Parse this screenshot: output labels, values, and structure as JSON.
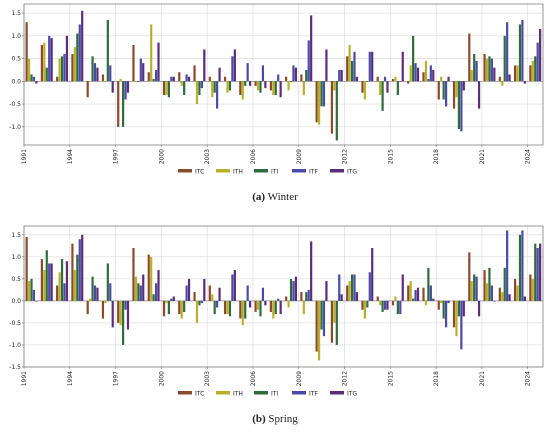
{
  "chart_data": [
    {
      "type": "bar",
      "title": "",
      "xlabel": "",
      "ylabel": "",
      "caption_label": "(a)",
      "caption_text": "Winter",
      "x": [
        1991,
        1992,
        1993,
        1994,
        1995,
        1996,
        1997,
        1998,
        1999,
        2000,
        2001,
        2002,
        2003,
        2004,
        2005,
        2006,
        2007,
        2008,
        2009,
        2010,
        2011,
        2012,
        2013,
        2014,
        2015,
        2016,
        2017,
        2018,
        2019,
        2020,
        2021,
        2022,
        2023,
        2024
      ],
      "x_tick_labels": [
        "1991",
        "1994",
        "1997",
        "2000",
        "2003",
        "2006",
        "2009",
        "2012",
        "2015",
        "2018",
        "2021",
        "2024"
      ],
      "y_ticks": [
        "-1.0",
        "-0.5",
        "0.0",
        "0.5",
        "1.0",
        "1.5"
      ],
      "ylim": [
        -1.4,
        1.7
      ],
      "legend_position": "bottom",
      "grid": true,
      "series": [
        {
          "name": "ITC",
          "color": "#8b4a2b",
          "values": [
            1.3,
            0.8,
            0.1,
            0.6,
            -0.35,
            0.15,
            -1.0,
            0.8,
            0.2,
            -0.3,
            0.2,
            0.35,
            0.1,
            0.1,
            -0.3,
            -0.1,
            -0.2,
            0.1,
            0.15,
            -0.9,
            -1.15,
            0.55,
            -0.25,
            0.1,
            0.05,
            -0.05,
            0.2,
            -0.4,
            -0.6,
            1.05,
            0.6,
            0.1,
            0.35,
            0.35
          ]
        },
        {
          "name": "ITH",
          "color": "#b8b02c",
          "values": [
            0.5,
            0.85,
            0.5,
            0.75,
            0.0,
            0.0,
            0.05,
            0.0,
            1.25,
            -0.3,
            -0.1,
            -0.5,
            -0.35,
            -0.25,
            -0.4,
            -0.2,
            -0.3,
            -0.2,
            -0.3,
            -0.95,
            -0.2,
            0.8,
            -0.4,
            -0.3,
            0.1,
            0.35,
            0.45,
            0.1,
            -0.35,
            0.25,
            0.5,
            -0.1,
            0.35,
            0.45
          ]
        },
        {
          "name": "ITI",
          "color": "#2f6b3d",
          "values": [
            0.15,
            0.3,
            0.55,
            1.05,
            0.55,
            1.35,
            -1.0,
            0.0,
            0.05,
            -0.35,
            -0.3,
            -0.3,
            -0.25,
            -0.2,
            -0.1,
            -0.25,
            -0.3,
            0.0,
            0.25,
            -0.55,
            -1.3,
            0.45,
            0.0,
            -0.65,
            -0.3,
            1.0,
            0.05,
            -0.4,
            -1.05,
            0.6,
            0.55,
            1.0,
            1.25,
            0.55
          ]
        },
        {
          "name": "ITF",
          "color": "#4a4aa8",
          "values": [
            0.1,
            1.0,
            0.6,
            1.25,
            0.4,
            0.35,
            -0.4,
            0.5,
            0.25,
            0.1,
            0.15,
            -0.15,
            -0.6,
            0.55,
            0.4,
            0.35,
            0.15,
            0.35,
            0.9,
            -0.55,
            0.25,
            0.65,
            0.65,
            0.1,
            0.0,
            0.4,
            0.35,
            -0.55,
            -1.1,
            0.45,
            0.5,
            1.3,
            1.35,
            0.85
          ]
        },
        {
          "name": "ITG",
          "color": "#5a2d7a",
          "values": [
            -0.05,
            0.95,
            1.0,
            1.55,
            0.3,
            -0.25,
            -0.25,
            0.4,
            0.85,
            0.1,
            0.1,
            0.7,
            0.3,
            0.7,
            -0.1,
            -0.15,
            -0.35,
            0.3,
            1.45,
            0.7,
            0.25,
            0.1,
            0.65,
            -0.25,
            0.65,
            0.3,
            0.25,
            0.1,
            -0.2,
            -0.6,
            0.3,
            0.15,
            -0.05,
            1.15
          ]
        }
      ]
    },
    {
      "type": "bar",
      "title": "",
      "xlabel": "",
      "ylabel": "",
      "caption_label": "(b)",
      "caption_text": "Spring",
      "x": [
        1991,
        1992,
        1993,
        1994,
        1995,
        1996,
        1997,
        1998,
        1999,
        2000,
        2001,
        2002,
        2003,
        2004,
        2005,
        2006,
        2007,
        2008,
        2009,
        2010,
        2011,
        2012,
        2013,
        2014,
        2015,
        2016,
        2017,
        2018,
        2019,
        2020,
        2021,
        2022,
        2023,
        2024
      ],
      "x_tick_labels": [
        "1991",
        "1994",
        "1997",
        "2000",
        "2003",
        "2006",
        "2009",
        "2012",
        "2015",
        "2018",
        "2021",
        "2024"
      ],
      "y_ticks": [
        "-1.5",
        "-1.0",
        "-0.5",
        "0.0",
        "0.5",
        "1.0",
        "1.5"
      ],
      "ylim": [
        -1.5,
        1.7
      ],
      "legend_position": "bottom",
      "grid": true,
      "series": [
        {
          "name": "ITC",
          "color": "#8b4a2b",
          "values": [
            1.45,
            0.95,
            0.35,
            1.3,
            -0.3,
            -0.4,
            -0.5,
            1.2,
            1.05,
            -0.35,
            -0.3,
            0.2,
            0.35,
            -0.3,
            -0.4,
            -0.25,
            -0.25,
            0.1,
            0.2,
            -1.15,
            -0.95,
            0.35,
            -0.2,
            0.1,
            -0.1,
            0.35,
            0.3,
            -0.2,
            -0.6,
            1.1,
            0.7,
            0.3,
            0.5,
            0.6
          ]
        },
        {
          "name": "ITH",
          "color": "#b8b02c",
          "values": [
            0.45,
            0.7,
            0.65,
            0.7,
            0.05,
            -0.05,
            -0.55,
            0.55,
            1.0,
            -0.05,
            -0.4,
            -0.5,
            0.15,
            -0.3,
            -0.55,
            -0.2,
            -0.4,
            -0.15,
            -0.3,
            -1.35,
            -0.5,
            0.45,
            -0.4,
            -0.1,
            0.1,
            0.45,
            -0.1,
            -0.05,
            -0.8,
            0.45,
            0.4,
            0.2,
            0.35,
            0.5
          ]
        },
        {
          "name": "ITI",
          "color": "#2f6b3d",
          "values": [
            0.5,
            1.15,
            0.95,
            1.05,
            0.55,
            0.85,
            -1.0,
            0.4,
            0.15,
            -0.3,
            -0.25,
            -0.1,
            -0.3,
            -0.35,
            -0.4,
            -0.35,
            -0.3,
            0.5,
            0.2,
            -0.65,
            -1.0,
            0.6,
            -0.15,
            -0.25,
            -0.3,
            0.05,
            0.75,
            -0.4,
            -0.35,
            0.6,
            0.75,
            0.75,
            1.5,
            1.3
          ]
        },
        {
          "name": "ITF",
          "color": "#4a4aa8",
          "values": [
            0.25,
            0.85,
            0.4,
            1.4,
            0.35,
            0.4,
            -0.2,
            0.35,
            0.4,
            0.05,
            0.35,
            -0.05,
            -0.15,
            0.6,
            0.35,
            0.3,
            0.05,
            0.45,
            0.25,
            -0.8,
            0.6,
            0.6,
            0.65,
            -0.2,
            -0.3,
            0.25,
            0.35,
            -0.6,
            -1.1,
            0.55,
            0.35,
            1.6,
            1.6,
            1.2
          ]
        },
        {
          "name": "ITG",
          "color": "#5a2d7a",
          "values": [
            0.0,
            0.85,
            0.9,
            1.5,
            0.3,
            -0.6,
            -0.65,
            0.6,
            0.7,
            0.1,
            0.5,
            0.5,
            0.3,
            0.7,
            -0.15,
            -0.1,
            -0.3,
            0.55,
            1.35,
            0.45,
            0.15,
            0.2,
            1.2,
            -0.2,
            0.6,
            0.3,
            0.05,
            -0.05,
            -0.35,
            -0.35,
            0.0,
            0.15,
            0.1,
            1.3
          ]
        }
      ]
    }
  ]
}
